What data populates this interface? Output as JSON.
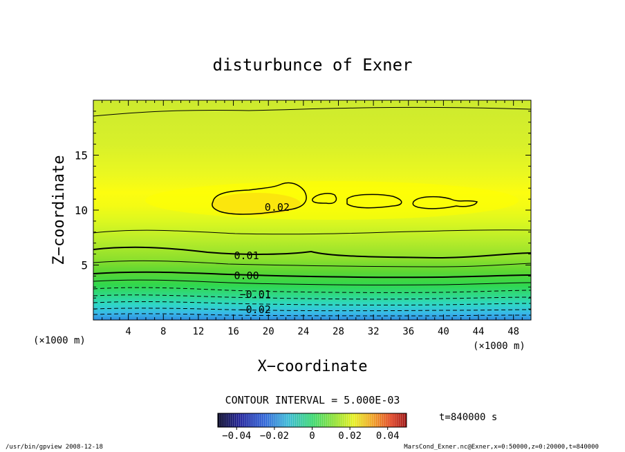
{
  "chart_data": {
    "type": "heatmap",
    "title": "disturbunce of Exner",
    "xlabel": "X−coordinate",
    "ylabel": "Z−coordinate",
    "x_unit": "(×1000 m)",
    "y_unit": "(×1000 m)",
    "xlim": [
      0,
      50
    ],
    "ylim": [
      0,
      20
    ],
    "x_ticks": [
      4,
      8,
      12,
      16,
      20,
      24,
      28,
      32,
      36,
      40,
      44,
      48
    ],
    "y_ticks": [
      5,
      10,
      15
    ],
    "value_range": [
      -0.05,
      0.05
    ],
    "contour_interval_text": "CONTOUR INTERVAL = 5.000E-03",
    "contour_labels": [
      {
        "text": "0.02",
        "x": 21,
        "z": 10.3
      },
      {
        "text": "0.01",
        "x": 17.5,
        "z": 5.9
      },
      {
        "text": "0.00",
        "x": 17.5,
        "z": 4.1
      },
      {
        "text": "−0.01",
        "x": 18.5,
        "z": 2.4
      },
      {
        "text": "−0.02",
        "x": 18.5,
        "z": 1.0
      }
    ],
    "colorbar": {
      "ticks": [
        {
          "label": "−0.04",
          "value": -0.04
        },
        {
          "label": "−0.02",
          "value": -0.02
        },
        {
          "label": "0",
          "value": 0
        },
        {
          "label": "0.02",
          "value": 0.02
        },
        {
          "label": "0.04",
          "value": 0.04
        }
      ]
    },
    "time_label": "t=840000 s",
    "grid": false
  },
  "footer": {
    "left": "/usr/bin/gpview   2008-12-18",
    "right": "MarsCond_Exner.nc@Exner,x=0:50000,z=0:20000,t=840000"
  }
}
